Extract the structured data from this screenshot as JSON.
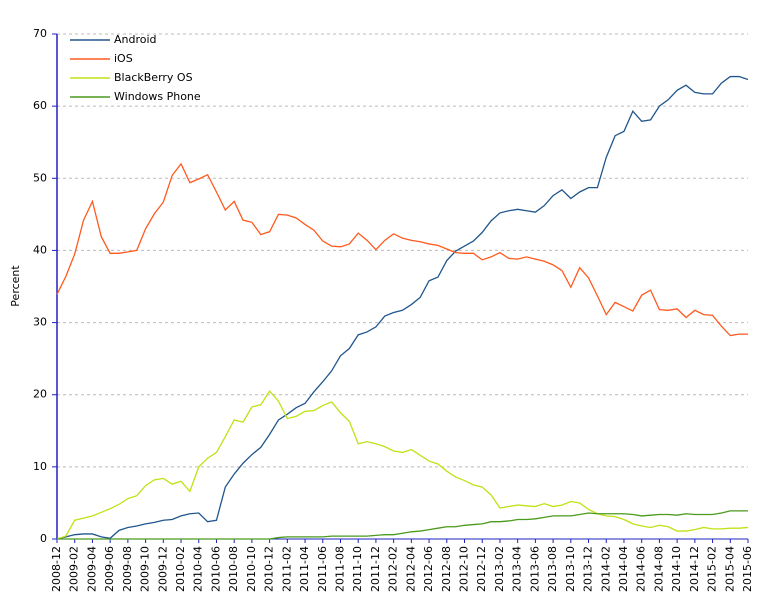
{
  "chart_data": {
    "type": "line",
    "y_label": "Percent",
    "categories": [
      "2008-12",
      null,
      "2009-02",
      null,
      "2009-04",
      null,
      "2009-06",
      null,
      "2009-08",
      null,
      "2009-10",
      null,
      "2009-12",
      null,
      "2010-02",
      null,
      "2010-04",
      null,
      "2010-06",
      null,
      "2010-08",
      null,
      "2010-10",
      null,
      "2010-12",
      null,
      "2011-02",
      null,
      "2011-04",
      null,
      "2011-06",
      null,
      "2011-08",
      null,
      "2011-10",
      null,
      "2011-12",
      null,
      "2012-02",
      null,
      "2012-04",
      null,
      "2012-06",
      null,
      "2012-08",
      null,
      "2012-10",
      null,
      "2012-12",
      null,
      "2013-02",
      null,
      "2013-04",
      null,
      "2013-06",
      null,
      "2013-08",
      null,
      "2013-10",
      null,
      "2013-12",
      null,
      "2014-02",
      null,
      "2014-04",
      null,
      "2014-06",
      null,
      "2014-08",
      null,
      "2014-10",
      null,
      "2014-12",
      null,
      "2015-02",
      null,
      "2015-04",
      null,
      "2015-06"
    ],
    "series": [
      {
        "name": "Android",
        "color": "#21568c",
        "values": [
          0,
          0.3,
          0.6,
          0.7,
          0.7,
          0.3,
          0.1,
          1.2,
          1.6,
          1.8,
          2.1,
          2.3,
          2.6,
          2.7,
          3.2,
          3.5,
          3.6,
          2.4,
          2.6,
          7.2,
          9,
          10.5,
          11.7,
          12.7,
          14.5,
          16.5,
          17.3,
          18.2,
          18.8,
          20.4,
          21.8,
          23.3,
          25.4,
          26.4,
          28.3,
          28.7,
          29.4,
          30.9,
          31.4,
          31.7,
          32.5,
          33.5,
          35.8,
          36.3,
          38.6,
          39.9,
          40.6,
          41.3,
          42.5,
          44.1,
          45.2,
          45.5,
          45.7,
          45.5,
          45.3,
          46.2,
          47.6,
          48.4,
          47.2,
          48.1,
          48.7,
          48.7,
          52.9,
          55.9,
          56.5,
          59.3,
          57.9,
          58.1,
          60,
          60.9,
          62.2,
          62.9,
          61.9,
          61.7,
          61.7,
          63.2,
          64.1,
          64.1,
          63.7
        ]
      },
      {
        "name": "iOS",
        "color": "#ff5a1e",
        "values": [
          33.9,
          36.4,
          39.5,
          44.2,
          46.8,
          41.9,
          39.6,
          39.6,
          39.8,
          40,
          43,
          45.1,
          46.7,
          50.4,
          52,
          49.4,
          49.9,
          50.5,
          48.1,
          45.6,
          46.8,
          44.2,
          43.9,
          42.2,
          42.6,
          45,
          44.9,
          44.5,
          43.6,
          42.8,
          41.3,
          40.6,
          40.5,
          40.9,
          42.4,
          41.4,
          40.1,
          41.4,
          42.3,
          41.7,
          41.4,
          41.2,
          40.9,
          40.7,
          40.2,
          39.7,
          39.6,
          39.6,
          38.7,
          39.1,
          39.7,
          38.9,
          38.8,
          39.1,
          38.8,
          38.5,
          38,
          37.2,
          34.9,
          37.6,
          36.2,
          33.7,
          31.1,
          32.8,
          32.2,
          31.6,
          33.8,
          34.5,
          31.8,
          31.7,
          31.9,
          30.7,
          31.7,
          31.1,
          31,
          29.5,
          28.2,
          28.4,
          28.4
        ]
      },
      {
        "name": "BlackBerry OS",
        "color": "#c2e014",
        "values": [
          0,
          0.4,
          2.6,
          2.9,
          3.2,
          3.7,
          4.2,
          4.8,
          5.6,
          6,
          7.4,
          8.2,
          8.4,
          7.6,
          8,
          6.6,
          10,
          11.2,
          12,
          14.2,
          16.5,
          16.2,
          18.3,
          18.6,
          20.5,
          19.1,
          16.7,
          17,
          17.7,
          17.8,
          18.5,
          19,
          17.5,
          16.3,
          13.2,
          13.5,
          13.2,
          12.8,
          12.2,
          12,
          12.4,
          11.6,
          10.8,
          10.4,
          9.4,
          8.6,
          8.1,
          7.5,
          7.2,
          6.1,
          4.3,
          4.5,
          4.7,
          4.6,
          4.5,
          4.9,
          4.5,
          4.7,
          5.2,
          5,
          4.1,
          3.5,
          3.2,
          3.1,
          2.7,
          2.1,
          1.8,
          1.6,
          1.9,
          1.7,
          1.1,
          1.1,
          1.3,
          1.6,
          1.4,
          1.4,
          1.5,
          1.5,
          1.6
        ]
      },
      {
        "name": "Windows Phone",
        "color": "#4a9a1c",
        "values": [
          0,
          0,
          0,
          0,
          0,
          0,
          0,
          0,
          0,
          0,
          0,
          0,
          0,
          0,
          0,
          0,
          0,
          0,
          0,
          0,
          0,
          0,
          0,
          0,
          0,
          0.2,
          0.3,
          0.3,
          0.3,
          0.3,
          0.3,
          0.4,
          0.4,
          0.4,
          0.4,
          0.4,
          0.5,
          0.6,
          0.6,
          0.8,
          1,
          1.1,
          1.3,
          1.5,
          1.7,
          1.7,
          1.9,
          2,
          2.1,
          2.4,
          2.4,
          2.5,
          2.7,
          2.7,
          2.8,
          3,
          3.2,
          3.2,
          3.2,
          3.4,
          3.6,
          3.5,
          3.5,
          3.5,
          3.5,
          3.4,
          3.2,
          3.3,
          3.4,
          3.4,
          3.3,
          3.5,
          3.4,
          3.4,
          3.4,
          3.6,
          3.9,
          3.9,
          3.9
        ]
      }
    ],
    "ylim": [
      0,
      70
    ],
    "yticks": [
      0,
      10,
      20,
      30,
      40,
      50,
      60,
      70
    ],
    "grid": true,
    "legend": "upper-left"
  }
}
